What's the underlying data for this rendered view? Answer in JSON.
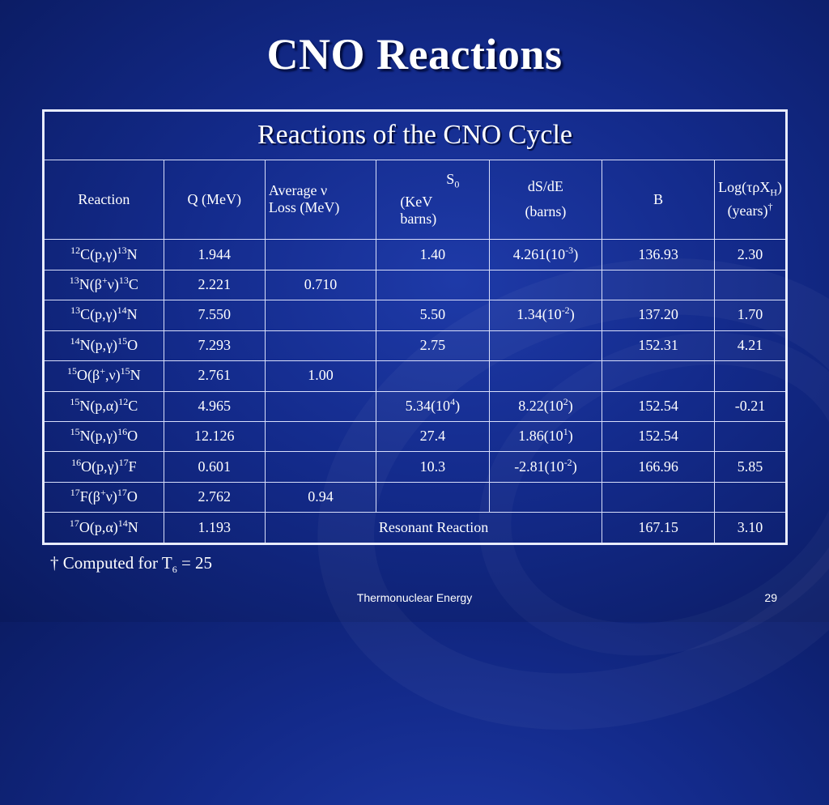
{
  "slide": {
    "title": "CNO Reactions",
    "footer": "Thermonuclear Energy",
    "page_number": "29",
    "footnote": {
      "dagger": "†",
      "text": " Computed for T",
      "sub": "6",
      "rest": " = 25"
    }
  },
  "table": {
    "caption": "Reactions of the CNO Cycle",
    "headers": {
      "reaction": "Reaction",
      "q": "Q (MeV)",
      "avg_line1": "Average ν",
      "avg_line2": "Loss (MeV)",
      "s0_s": "S",
      "s0_sub": "0",
      "s0_line2": "(KeV",
      "s0_line3": "barns)",
      "dsde_line1": "dS/dE",
      "dsde_line2": "(barns)",
      "b": "B",
      "log_pre": "Log(τρX",
      "log_sub": "H",
      "log_post": ")",
      "log_line2": "(years)",
      "log_dagger": "†"
    },
    "rows": [
      {
        "r1": "12",
        "r2": "C(p,γ)",
        "r3": "13",
        "r4": "N",
        "q": "1.944",
        "avg": "",
        "s0": "1.40",
        "s0_sup": "",
        "s0_tail": "",
        "ds_pre": "4.261(10",
        "ds_sup": "-3",
        "ds_post": ")",
        "b": "136.93",
        "log": "2.30"
      },
      {
        "r1": "13",
        "r2": "N(β",
        "rsup": "+",
        "r2b": "ν)",
        "r3": "13",
        "r4": "C",
        "q": "2.221",
        "avg": "0.710",
        "s0": "",
        "s0_sup": "",
        "s0_tail": "",
        "ds_pre": "",
        "ds_sup": "",
        "ds_post": "",
        "b": "",
        "log": ""
      },
      {
        "r1": "13",
        "r2": "C(p,γ)",
        "r3": "14",
        "r4": "N",
        "q": "7.550",
        "avg": "",
        "s0": "5.50",
        "s0_sup": "",
        "s0_tail": "",
        "ds_pre": "1.34(10",
        "ds_sup": "-2",
        "ds_post": ")",
        "b": "137.20",
        "log": "1.70"
      },
      {
        "r1": "14",
        "r2": "N(p,γ)",
        "r3": "15",
        "r4": "O",
        "q": "7.293",
        "avg": "",
        "s0": "2.75",
        "s0_sup": "",
        "s0_tail": "",
        "ds_pre": "",
        "ds_sup": "",
        "ds_post": "",
        "b": "152.31",
        "log": "4.21"
      },
      {
        "r1": "15",
        "r2": "O(β",
        "rsup": "+",
        "r2b": ",ν)",
        "r3": "15",
        "r4": "N",
        "q": "2.761",
        "avg": "1.00",
        "s0": "",
        "s0_sup": "",
        "s0_tail": "",
        "ds_pre": "",
        "ds_sup": "",
        "ds_post": "",
        "b": "",
        "log": ""
      },
      {
        "r1": "15",
        "r2": "N(p,α)",
        "r3": "12",
        "r4": "C",
        "q": "4.965",
        "avg": "",
        "s0": "5.34(10",
        "s0_sup": "4",
        "s0_tail": ")",
        "ds_pre": "8.22(10",
        "ds_sup": "2",
        "ds_post": ")",
        "b": "152.54",
        "log": "-0.21"
      },
      {
        "r1": "15",
        "r2": "N(p,γ)",
        "r3": "16",
        "r4": "O",
        "q": "12.126",
        "avg": "",
        "s0": "27.4",
        "s0_sup": "",
        "s0_tail": "",
        "ds_pre": "1.86(10",
        "ds_sup": "1",
        "ds_post": ")",
        "b": "152.54",
        "log": ""
      },
      {
        "r1": "16",
        "r2": "O(p,γ)",
        "r3": "17",
        "r4": "F",
        "q": "0.601",
        "avg": "",
        "s0": "10.3",
        "s0_sup": "",
        "s0_tail": "",
        "ds_pre": "-2.81(10",
        "ds_sup": "-2",
        "ds_post": ")",
        "b": "166.96",
        "log": "5.85"
      },
      {
        "r1": "17",
        "r2": "F(β",
        "rsup": "+",
        "r2b": "ν)",
        "r3": "17",
        "r4": "O",
        "q": "2.762",
        "avg": "0.94",
        "s0": "",
        "s0_sup": "",
        "s0_tail": "",
        "ds_pre": "",
        "ds_sup": "",
        "ds_post": "",
        "b": "",
        "log": ""
      }
    ],
    "last_row": {
      "r1": "17",
      "r2": "O(p,α)",
      "r3": "14",
      "r4": "N",
      "q": "1.193",
      "resonant": "Resonant Reaction",
      "b": "167.15",
      "log": "3.10"
    }
  }
}
